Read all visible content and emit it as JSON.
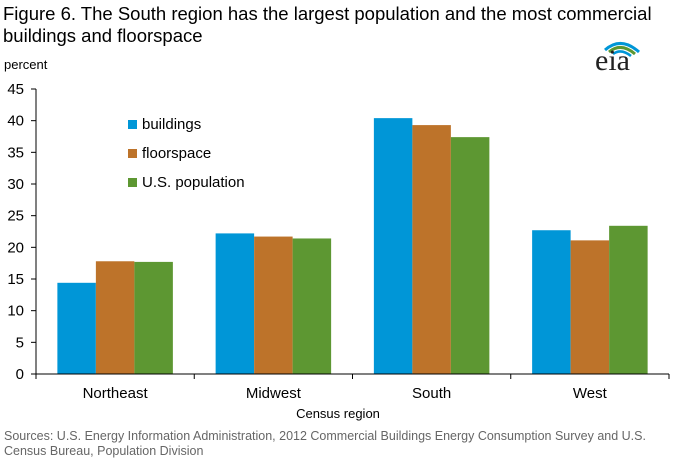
{
  "header": {
    "title": "Figure 6. The South region has the largest population and the most commercial buildings and floorspace",
    "logo_text": "eia"
  },
  "footer": {
    "source": "Sources: U.S. Energy Information Administration,  2012 Commercial Buildings Energy Consumption Survey and U.S. Census Bureau, Population Division"
  },
  "chart_data": {
    "type": "bar",
    "title": "Figure 6. The South region has the largest population and the most commercial buildings and floorspace",
    "ylabel": "percent",
    "xlabel": "Census region",
    "categories": [
      "Northeast",
      "Midwest",
      "South",
      "West"
    ],
    "ylim": [
      0,
      45
    ],
    "yticks": [
      0,
      5,
      10,
      15,
      20,
      25,
      30,
      35,
      40,
      45
    ],
    "grid": false,
    "legend_position": "top-left",
    "series": [
      {
        "name": "buildings",
        "color": "#0096d7",
        "values": [
          14.4,
          22.2,
          40.4,
          22.7
        ]
      },
      {
        "name": "floorspace",
        "color": "#bd732a",
        "values": [
          17.8,
          21.7,
          39.3,
          21.1
        ]
      },
      {
        "name": "U.S. population",
        "color": "#5d9732",
        "values": [
          17.7,
          21.4,
          37.4,
          23.4
        ]
      }
    ]
  },
  "colors": {
    "logo_blue": "#0096d7",
    "logo_green": "#5d9732",
    "source_text": "#666666"
  }
}
